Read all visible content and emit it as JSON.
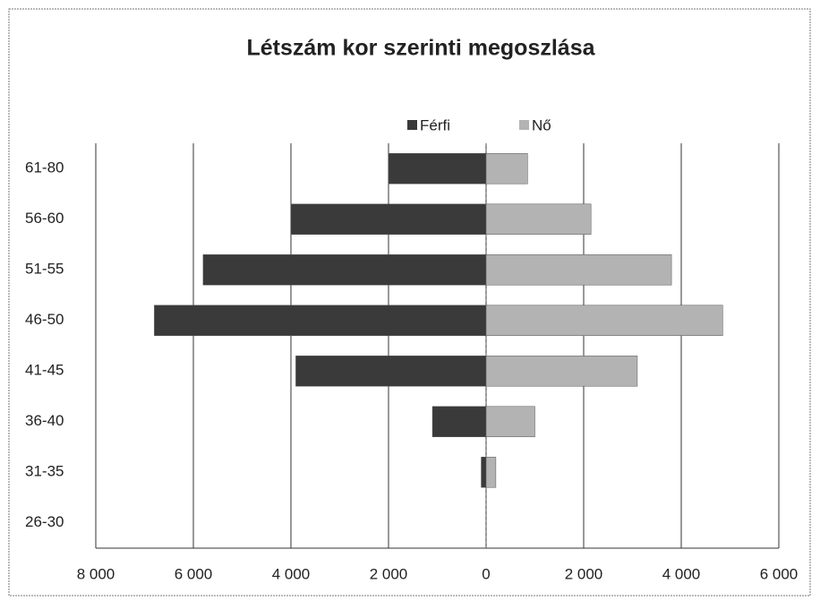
{
  "chart_data": {
    "type": "bar",
    "orientation": "horizontal",
    "title": "Létszám kor szerinti megoszlása",
    "categories": [
      "61-80",
      "56-60",
      "51-55",
      "46-50",
      "41-45",
      "36-40",
      "31-35",
      "26-30"
    ],
    "series": [
      {
        "name": "Férfi",
        "color": "#3a3a3a",
        "values": [
          -2000,
          -4000,
          -5800,
          -6800,
          -3900,
          -1100,
          -100,
          0
        ]
      },
      {
        "name": "Nő",
        "color": "#b3b3b3",
        "values": [
          850,
          2150,
          3800,
          4850,
          3100,
          1000,
          200,
          0
        ]
      }
    ],
    "xlim": [
      -8000,
      6000
    ],
    "xticks": [
      {
        "value": -8000,
        "label": "8 000"
      },
      {
        "value": -6000,
        "label": "6 000"
      },
      {
        "value": -4000,
        "label": "4 000"
      },
      {
        "value": -2000,
        "label": "2 000"
      },
      0,
      {
        "value": 2000,
        "label": "2 000"
      },
      {
        "value": 4000,
        "label": "4 000"
      },
      {
        "value": 6000,
        "label": "6 000"
      }
    ],
    "grid": true,
    "legend": "top"
  }
}
